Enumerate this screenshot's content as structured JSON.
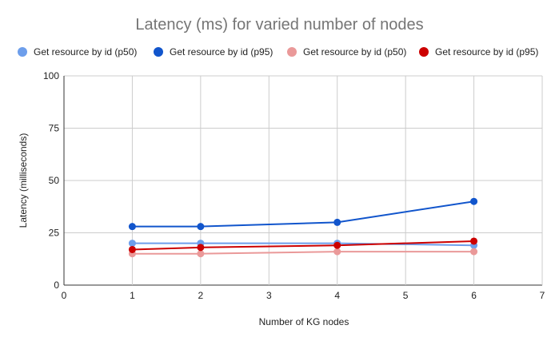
{
  "chart_data": {
    "type": "line",
    "title": "Latency (ms) for varied number of nodes",
    "xlabel": "Number of KG nodes",
    "ylabel": "Latency (milliseconds)",
    "xlim": [
      0,
      7
    ],
    "ylim": [
      0,
      100
    ],
    "x_ticks": [
      "0",
      "1",
      "2",
      "3",
      "4",
      "5",
      "6",
      "7"
    ],
    "y_ticks": [
      "0",
      "25",
      "50",
      "75",
      "100"
    ],
    "grid": true,
    "legend_position": "top",
    "x": [
      1,
      2,
      4,
      6
    ],
    "series": [
      {
        "name": "Get resource by id (p50)",
        "color": "#6d9eeb",
        "values": [
          20,
          20,
          20,
          19
        ]
      },
      {
        "name": "Get resource by id (p95)",
        "color": "#1155cc",
        "values": [
          28,
          28,
          30,
          40
        ]
      },
      {
        "name": "Get resource by id (p50)",
        "color": "#ea9999",
        "values": [
          15,
          15,
          16,
          16
        ]
      },
      {
        "name": "Get resource by id (p95)",
        "color": "#cc0000",
        "values": [
          17,
          18,
          19,
          21
        ]
      }
    ]
  }
}
